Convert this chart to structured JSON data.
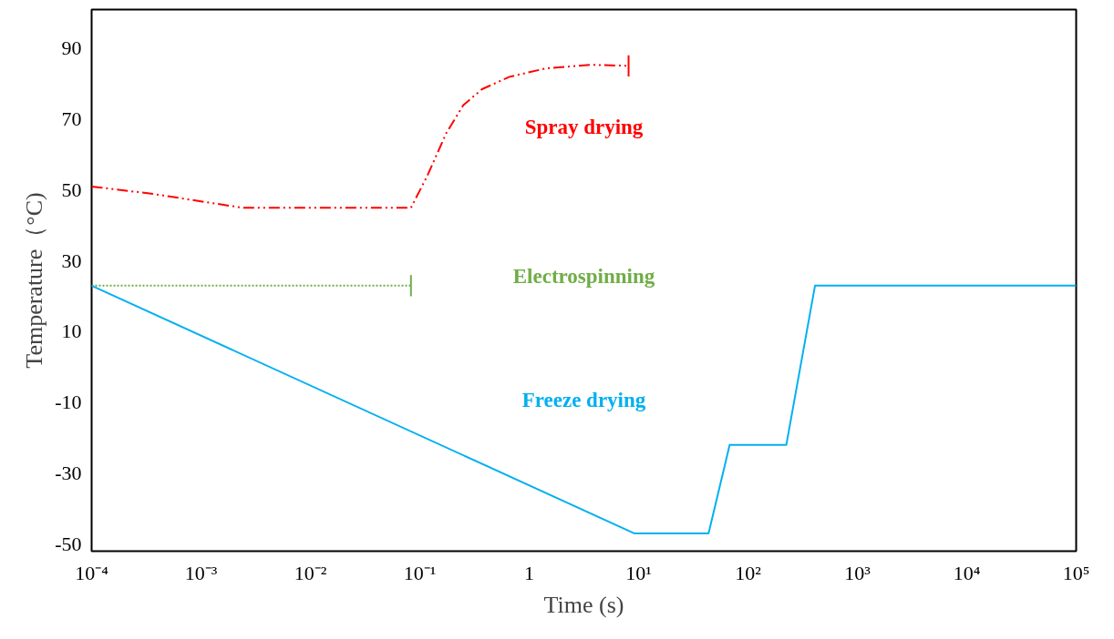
{
  "chart_data": {
    "type": "line",
    "xlabel": "Time (s)",
    "ylabel": "Temperature（°C)",
    "log": "x",
    "xlim": [
      0.0001,
      100000
    ],
    "ylim": [
      -52,
      101
    ],
    "xticks": [
      {
        "value": 0.0001,
        "label": "10⁻⁴"
      },
      {
        "value": 0.001,
        "label": "10⁻³"
      },
      {
        "value": 0.01,
        "label": "10⁻²"
      },
      {
        "value": 0.1,
        "label": "10⁻¹"
      },
      1,
      {
        "value": 10,
        "label": "10¹"
      },
      {
        "value": 100,
        "label": "10²"
      },
      {
        "value": 1000,
        "label": "10³"
      },
      {
        "value": 10000,
        "label": "10⁴"
      },
      {
        "value": 100000,
        "label": "10⁵"
      }
    ],
    "yticks": [
      -50,
      -30,
      -10,
      10,
      30,
      50,
      70,
      90
    ],
    "grid": false,
    "legend": false,
    "series": [
      {
        "name": "Spray drying",
        "color": "#ff0000",
        "line_style": "dashed",
        "x": [
          0.0001,
          0.00035,
          0.0024,
          0.083,
          0.117,
          0.174,
          0.25,
          0.37,
          0.66,
          1.43,
          3.7,
          8.1
        ],
        "values": [
          51,
          49,
          45,
          45,
          54,
          66,
          74,
          78.5,
          82,
          84.4,
          85.4,
          85.1
        ],
        "errors": [
          null,
          null,
          null,
          null,
          null,
          null,
          null,
          null,
          null,
          null,
          null,
          3
        ]
      },
      {
        "name": "Electrospinning",
        "color": "#70ad47",
        "line_style": "dotted",
        "x": [
          0.0001,
          0.083
        ],
        "values": [
          23,
          23
        ],
        "errors": [
          null,
          3
        ]
      },
      {
        "name": "Freeze drying",
        "color": "#00b0f0",
        "line_style": "solid",
        "x": [
          0.0001,
          9.2,
          43.6,
          68,
          224,
          410,
          100000
        ],
        "values": [
          23,
          -47,
          -47,
          -22,
          -22,
          23,
          23
        ]
      }
    ]
  }
}
